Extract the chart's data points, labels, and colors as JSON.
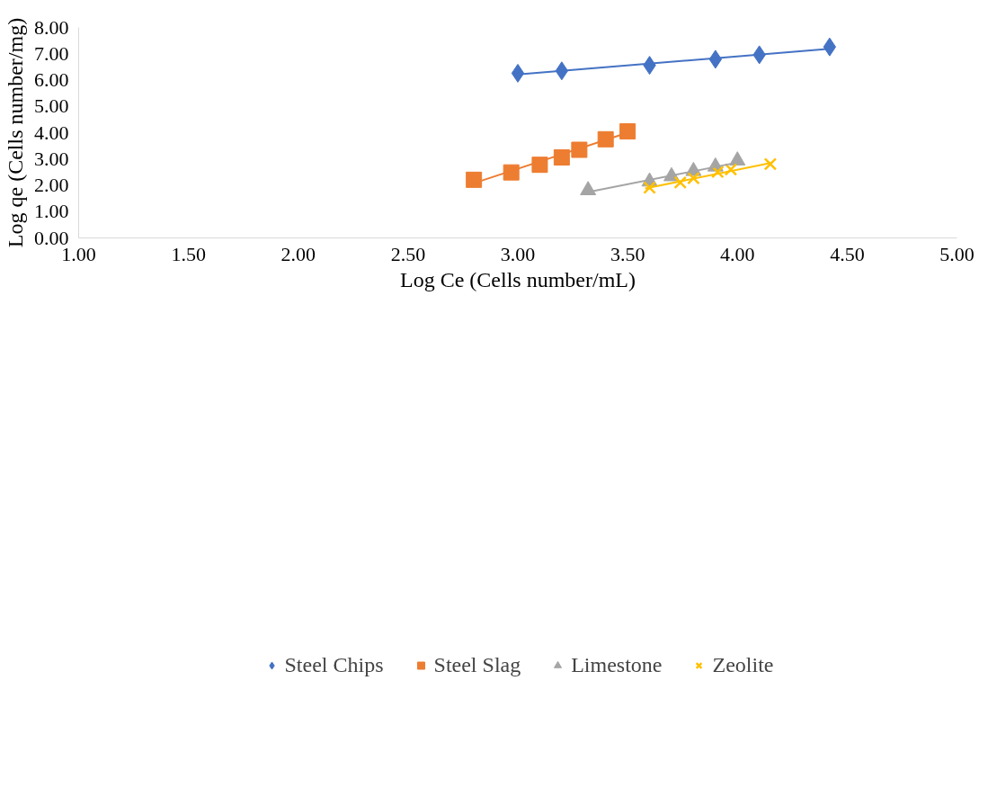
{
  "chart_data": {
    "type": "scatter",
    "xlabel": "Log Ce (Cells number/mL)",
    "ylabel": "Log qe (Cells number/mg)",
    "xlim": [
      1.0,
      5.0
    ],
    "ylim": [
      0.0,
      8.0
    ],
    "xticks": [
      {
        "value": 1.0,
        "label": "1.00"
      },
      {
        "value": 1.5,
        "label": "1.50"
      },
      {
        "value": 2.0,
        "label": "2.00"
      },
      {
        "value": 2.5,
        "label": "2.50"
      },
      {
        "value": 3.0,
        "label": "3.00"
      },
      {
        "value": 3.5,
        "label": "3.50"
      },
      {
        "value": 4.0,
        "label": "4.00"
      },
      {
        "value": 4.5,
        "label": "4.50"
      },
      {
        "value": 5.0,
        "label": "5.00"
      }
    ],
    "yticks": [
      {
        "value": 0,
        "label": "0.00"
      },
      {
        "value": 1,
        "label": "1.00"
      },
      {
        "value": 2,
        "label": "2.00"
      },
      {
        "value": 3,
        "label": "3.00"
      },
      {
        "value": 4,
        "label": "4.00"
      },
      {
        "value": 5,
        "label": "5.00"
      },
      {
        "value": 6,
        "label": "6.00"
      },
      {
        "value": 7,
        "label": "7.00"
      },
      {
        "value": 8,
        "label": "8.00"
      }
    ],
    "grid": false,
    "legend": "bottom",
    "series": [
      {
        "name": "Steel Chips",
        "color": "#4472c4",
        "marker": "diamond",
        "x": [
          3.0,
          3.2,
          3.6,
          3.9,
          4.1,
          4.42
        ],
        "values": [
          6.26,
          6.35,
          6.56,
          6.79,
          6.96,
          7.26
        ]
      },
      {
        "name": "Steel Slag",
        "color": "#ed7d31",
        "marker": "square",
        "x": [
          2.8,
          2.97,
          3.1,
          3.2,
          3.28,
          3.4,
          3.5
        ],
        "values": [
          2.21,
          2.49,
          2.78,
          3.06,
          3.35,
          3.75,
          4.05
        ]
      },
      {
        "name": "Limestone",
        "color": "#a5a5a5",
        "marker": "triangle",
        "x": [
          3.32,
          3.6,
          3.7,
          3.8,
          3.9,
          4.0
        ],
        "values": [
          1.81,
          2.14,
          2.34,
          2.54,
          2.71,
          2.94
        ]
      },
      {
        "name": "Zeolite",
        "color": "#ffc000",
        "marker": "cross",
        "x": [
          3.6,
          3.74,
          3.8,
          3.91,
          3.97,
          4.15
        ],
        "values": [
          1.91,
          2.11,
          2.27,
          2.51,
          2.6,
          2.81
        ]
      },
      {
        "type": "line",
        "color": "#4472c4",
        "x": [
          3.0,
          4.42
        ],
        "values": [
          6.21,
          7.19
        ]
      },
      {
        "type": "line",
        "color": "#ed7d31",
        "x": [
          2.8,
          3.5
        ],
        "values": [
          2.08,
          4.0
        ]
      },
      {
        "type": "line",
        "color": "#a5a5a5",
        "x": [
          3.32,
          3.99
        ],
        "values": [
          1.74,
          2.85
        ]
      },
      {
        "type": "line",
        "color": "#ffc000",
        "x": [
          3.58,
          4.16
        ],
        "values": [
          1.88,
          2.86
        ]
      }
    ]
  }
}
